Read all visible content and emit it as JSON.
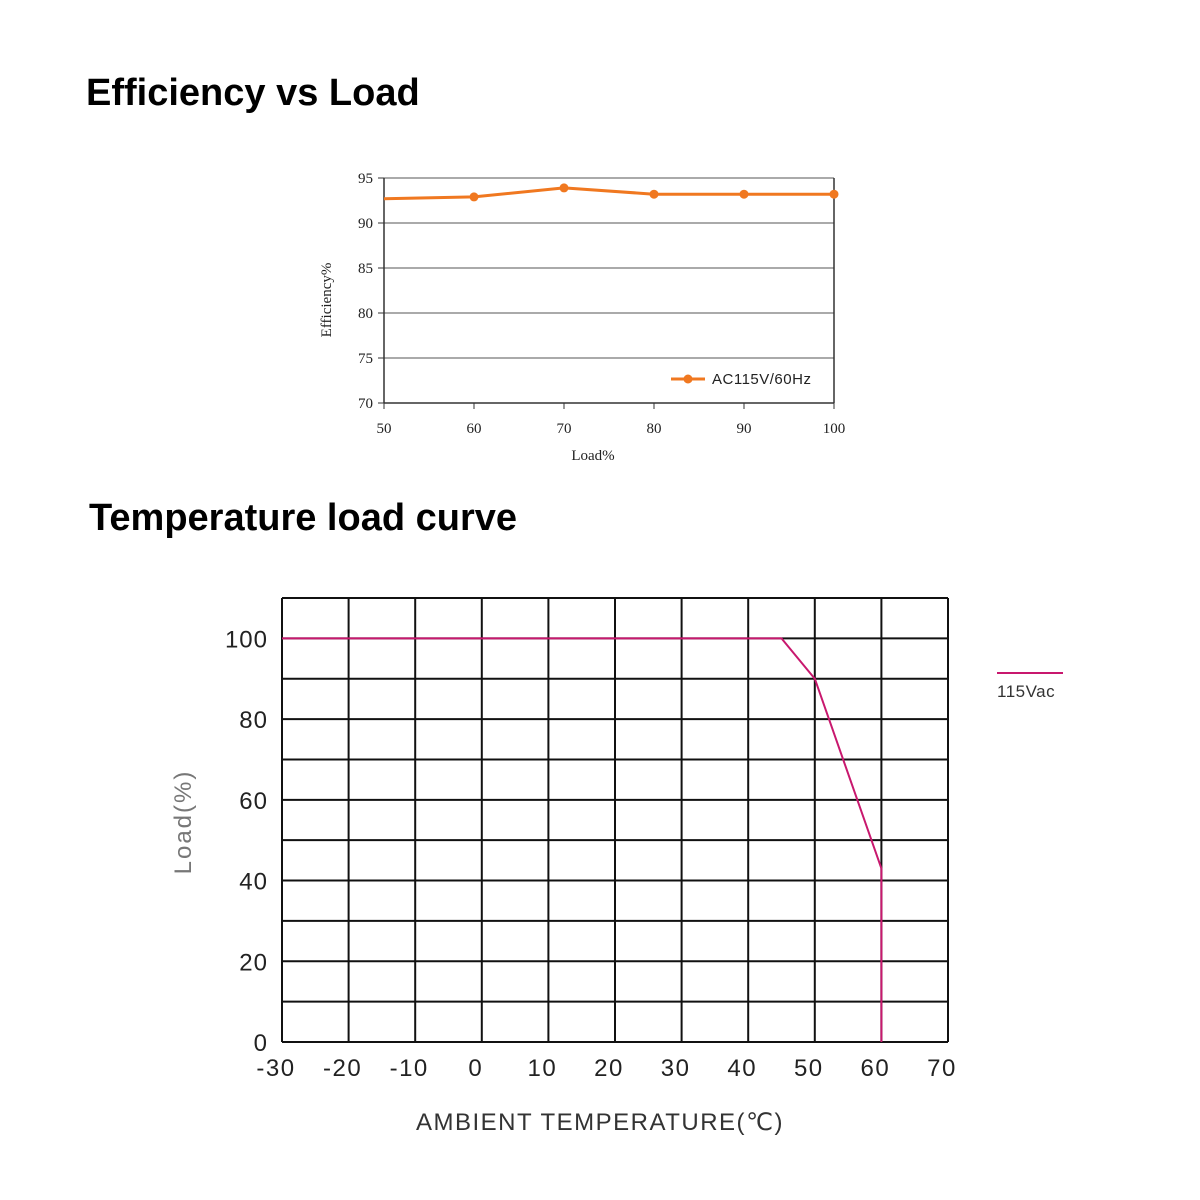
{
  "headings": {
    "efficiency": "Efficiency vs Load",
    "temperature": "Temperature load curve"
  },
  "chart_data": [
    {
      "type": "line",
      "title": "Efficiency vs Load",
      "xlabel": "Load%",
      "ylabel": "Efficiency%",
      "xlim": [
        50,
        100
      ],
      "ylim": [
        70,
        95
      ],
      "xticks": [
        "50",
        "60",
        "70",
        "80",
        "90",
        "100"
      ],
      "yticks": [
        "70",
        "75",
        "80",
        "85",
        "90",
        "95"
      ],
      "grid": "horizontal",
      "legend_position": "bottom-right",
      "series": [
        {
          "name": "AC115V/60Hz",
          "color": "#f07820",
          "x": [
            50,
            60,
            70,
            80,
            90,
            100
          ],
          "y": [
            92.7,
            92.9,
            93.9,
            93.2,
            93.2,
            93.2
          ],
          "markers": [
            false,
            true,
            true,
            true,
            true,
            true
          ]
        }
      ]
    },
    {
      "type": "line",
      "title": "Temperature load curve",
      "xlabel": "AMBIENT TEMPERATURE(℃)",
      "ylabel": "Load(%)",
      "xlim": [
        -30,
        70
      ],
      "ylim": [
        0,
        110
      ],
      "xticks": [
        "-30",
        "-20",
        "-10",
        "0",
        "10",
        "20",
        "30",
        "40",
        "50",
        "60",
        "70"
      ],
      "yticks": [
        "0",
        "20",
        "40",
        "60",
        "80",
        "100"
      ],
      "grid": "both",
      "legend_position": "right",
      "series": [
        {
          "name": "115Vac",
          "color": "#c8186e",
          "x": [
            -30,
            45,
            50,
            60,
            60
          ],
          "y": [
            100,
            100,
            90,
            43,
            0
          ]
        }
      ]
    }
  ]
}
